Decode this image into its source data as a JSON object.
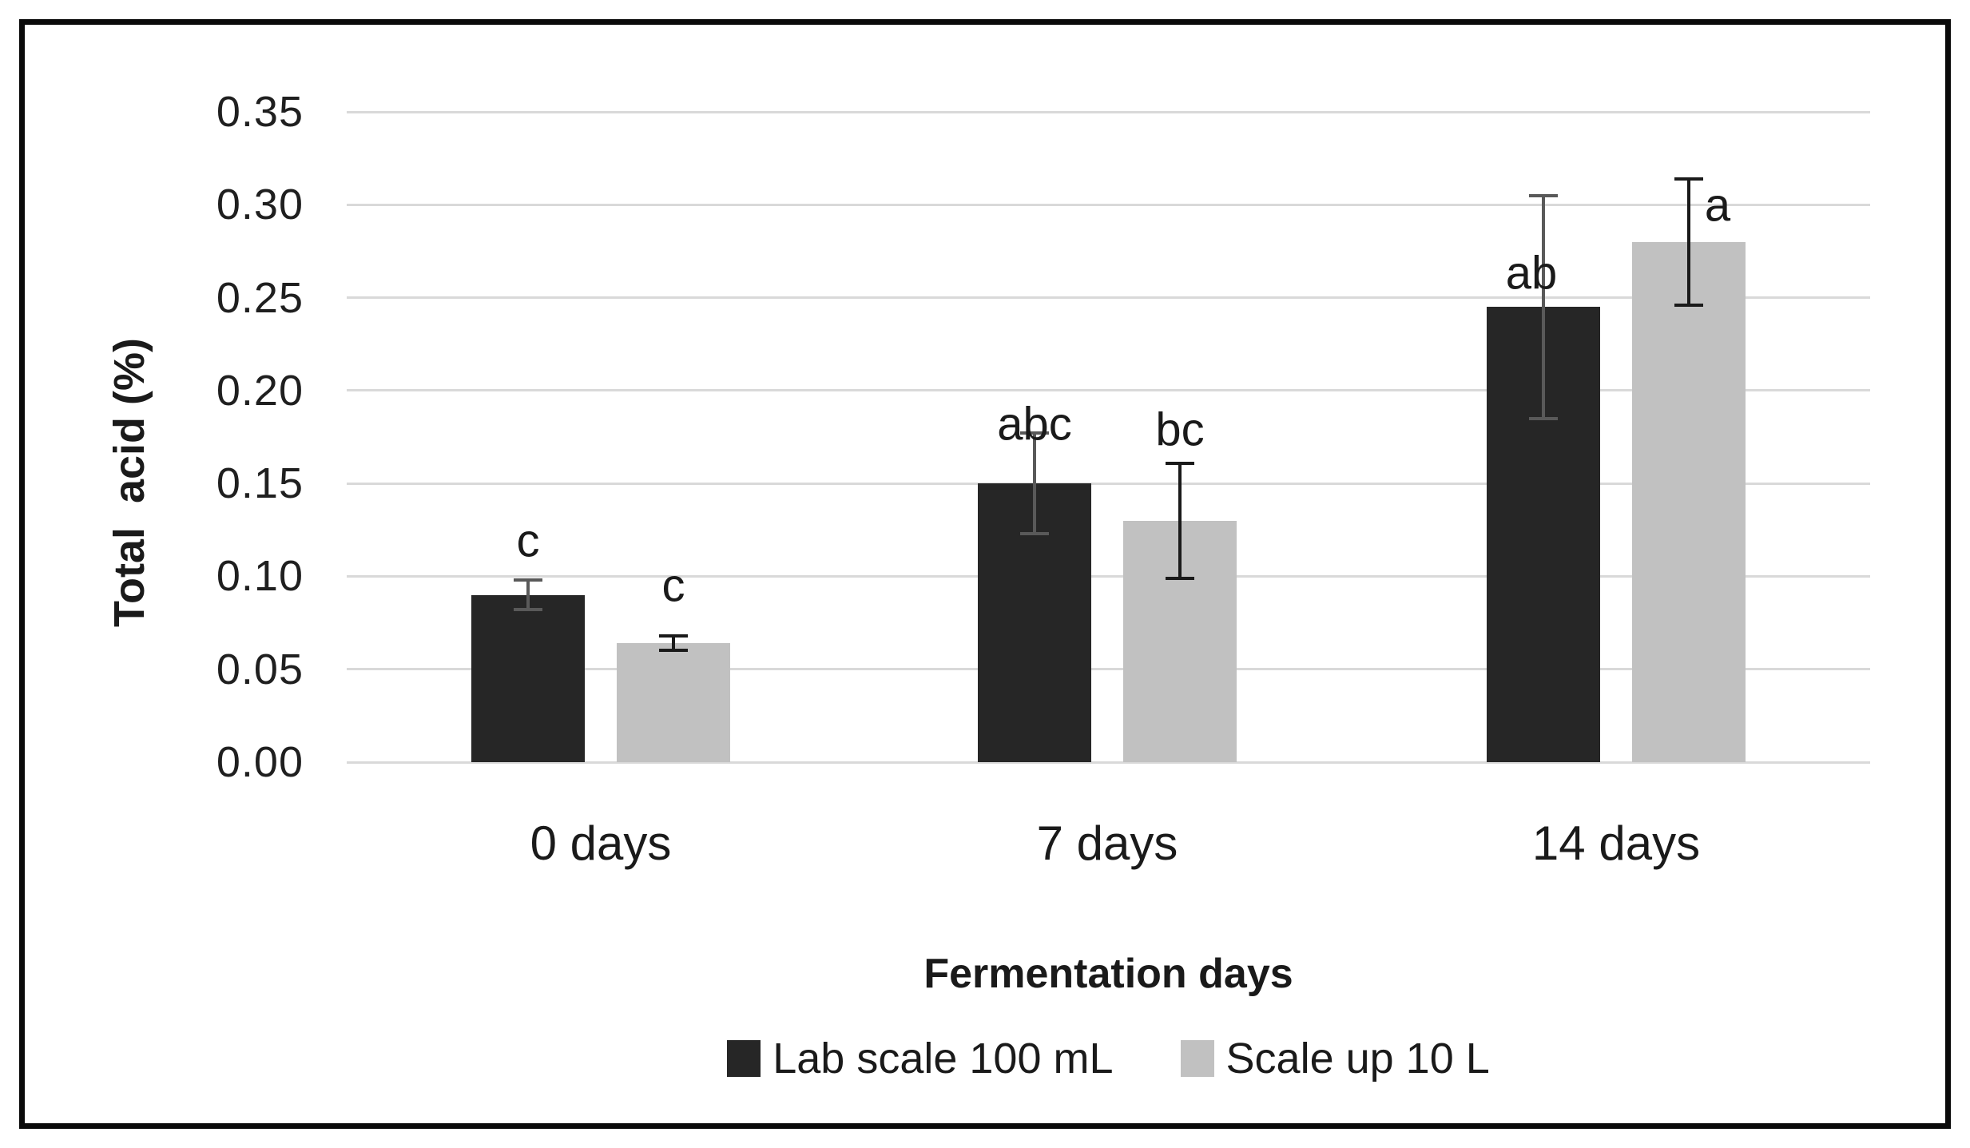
{
  "figure": {
    "background": "#ffffff",
    "frame_color": "#0a0a0a"
  },
  "chart_data": {
    "type": "bar",
    "title": "",
    "xlabel": "Fermentation days",
    "ylabel": "Total  acid (%)",
    "categories": [
      "0 days",
      "7 days",
      "14 days"
    ],
    "series": [
      {
        "name": "Lab scale 100 mL",
        "color": "#262626",
        "error_color": "#595959",
        "values": [
          0.09,
          0.15,
          0.245
        ],
        "errors": [
          0.008,
          0.027,
          0.06
        ],
        "annotations": [
          {
            "text": "c",
            "y": 0.119,
            "dx": 0
          },
          {
            "text": "abc",
            "y": 0.182,
            "dx": 0
          },
          {
            "text": "ab",
            "y": 0.263,
            "dx": -15
          }
        ]
      },
      {
        "name": "Scale up 10 L",
        "color": "#c1c1c1",
        "error_color": "#1a1a1a",
        "values": [
          0.064,
          0.13,
          0.28
        ],
        "errors": [
          0.004,
          0.031,
          0.034
        ],
        "annotations": [
          {
            "text": "c",
            "y": 0.095,
            "dx": 0
          },
          {
            "text": "bc",
            "y": 0.179,
            "dx": 0
          },
          {
            "text": "a",
            "y": 0.2995,
            "dx": 36
          }
        ]
      }
    ],
    "yticks": [
      "0.35",
      "0.30",
      "0.25",
      "0.20",
      "0.15",
      "0.10",
      "0.05",
      "0.00"
    ],
    "ylim": [
      0,
      0.35
    ],
    "grid": true,
    "gridline_color": "#d9d9d9",
    "legend_position": "bottom"
  }
}
